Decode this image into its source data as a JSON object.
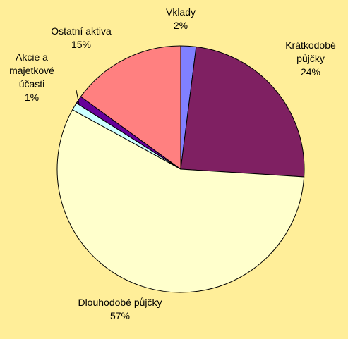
{
  "chart_data": {
    "type": "pie",
    "categories": [
      "Vklady",
      "Krátkodobé půjčky",
      "Dlouhodobé půjčky",
      null,
      "Akcie a majetkové účasti",
      "Ostatní aktiva"
    ],
    "values": [
      2,
      24,
      57,
      1,
      1,
      15
    ],
    "value_labels": [
      "2%",
      "24%",
      "57%",
      null,
      "1%",
      "15%"
    ],
    "colors": [
      "#8080ff",
      "#7f2062",
      "#ffffcc",
      "#ccffff",
      "#660099",
      "#ff8080"
    ]
  }
}
